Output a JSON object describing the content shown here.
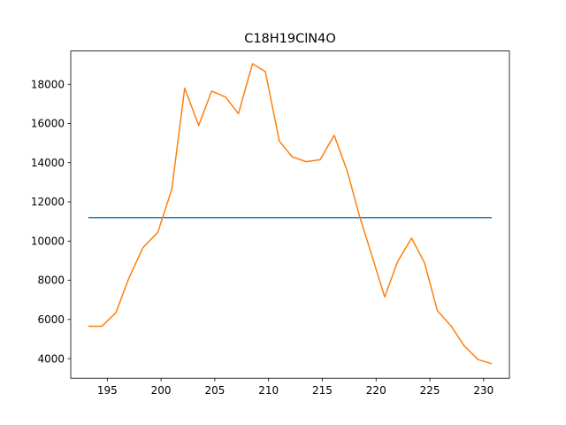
{
  "chart_data": {
    "type": "line",
    "title": "C18H19ClN4O",
    "xlabel": "",
    "ylabel": "",
    "xlim": [
      191.6,
      232.4
    ],
    "ylim": [
      3000,
      19700
    ],
    "grid": false,
    "x_ticks": [
      195,
      200,
      205,
      210,
      215,
      220,
      225,
      230
    ],
    "y_ticks": [
      4000,
      6000,
      8000,
      10000,
      12000,
      14000,
      16000,
      18000
    ],
    "series": [
      {
        "color": "#1f77b4",
        "x": [
          193.3,
          230.7
        ],
        "y": [
          11200,
          11200
        ]
      },
      {
        "color": "#ff7f0e",
        "x": [
          193.3,
          194.5,
          195.8,
          197.0,
          198.3,
          199.7,
          201.0,
          202.2,
          203.5,
          204.7,
          206.0,
          207.2,
          208.5,
          209.7,
          211.0,
          212.2,
          213.5,
          214.8,
          216.1,
          217.3,
          218.5,
          219.7,
          220.8,
          222.0,
          223.3,
          224.5,
          225.7,
          227.0,
          228.2,
          229.5,
          230.7
        ],
        "y": [
          5650,
          5650,
          6350,
          8100,
          9650,
          10450,
          12650,
          17800,
          15900,
          17650,
          17350,
          16500,
          19050,
          18650,
          15100,
          14300,
          14050,
          14150,
          15400,
          13600,
          11200,
          9100,
          7150,
          8950,
          10150,
          8900,
          6450,
          5650,
          4650,
          3950,
          3750
        ]
      }
    ]
  }
}
